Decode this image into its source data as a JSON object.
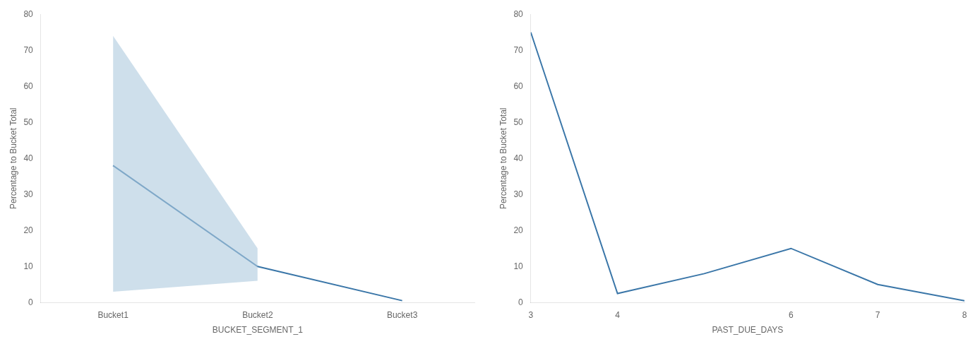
{
  "chart_data": [
    {
      "type": "line",
      "xlabel": "BUCKET_SEGMENT_1",
      "ylabel": "Percentage to Bucket Total",
      "categories": [
        "Bucket1",
        "Bucket2",
        "Bucket3"
      ],
      "series": [
        {
          "type": "band",
          "color": "#aec9de",
          "low": [
            3,
            6,
            null
          ],
          "high": [
            74,
            15,
            null
          ]
        },
        {
          "type": "line",
          "color": "#3a76a8",
          "values": [
            38,
            10,
            0.5
          ]
        }
      ],
      "ylim": [
        0,
        80
      ],
      "yticks": [
        0,
        10,
        20,
        30,
        40,
        50,
        60,
        70,
        80
      ],
      "grid": false
    },
    {
      "type": "line",
      "xlabel": "PAST_DUE_DAYS",
      "ylabel": "Percentage to Bucket Total",
      "x": [
        3,
        4,
        5,
        6,
        7,
        8
      ],
      "series": [
        {
          "type": "line",
          "color": "#3a76a8",
          "values": [
            75,
            2.5,
            8,
            15,
            5,
            0.5
          ]
        }
      ],
      "xlim": [
        3,
        8
      ],
      "xticks": [
        3,
        4,
        6,
        7,
        8
      ],
      "ylim": [
        0,
        80
      ],
      "yticks": [
        0,
        10,
        20,
        30,
        40,
        50,
        60,
        70,
        80
      ],
      "grid": false
    }
  ]
}
